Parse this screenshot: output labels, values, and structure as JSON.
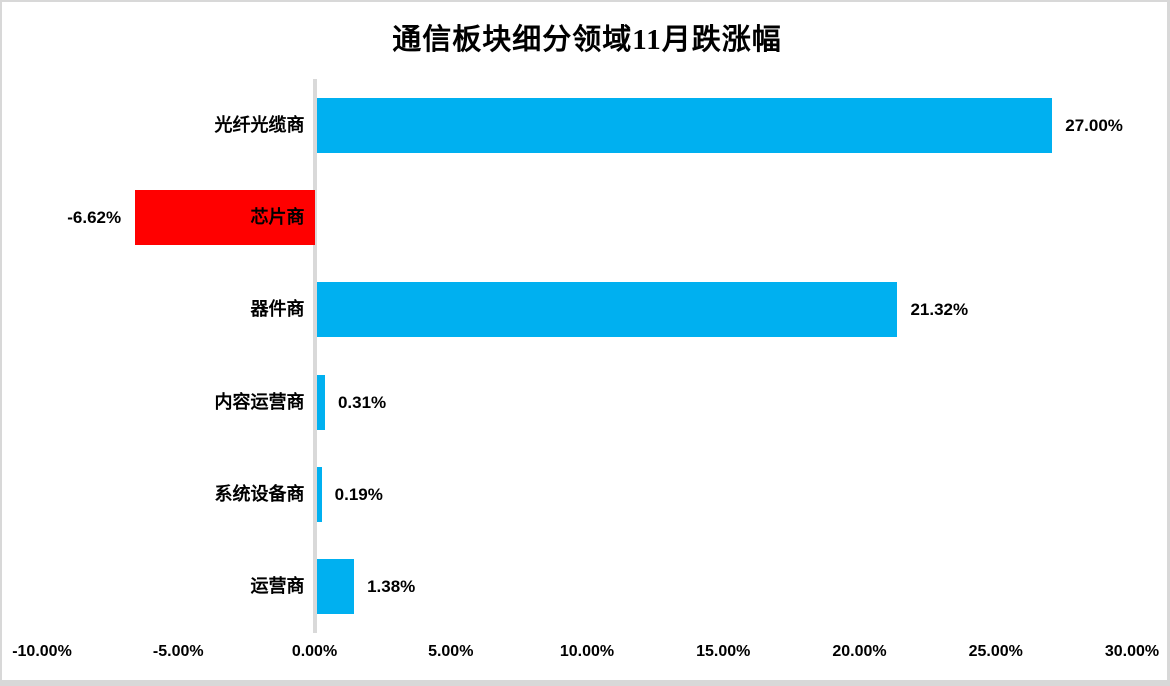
{
  "title": "通信板块细分领域11月跌涨幅",
  "chart_data": {
    "type": "bar",
    "orientation": "horizontal",
    "title": "通信板块细分领域11月跌涨幅",
    "categories": [
      "光纤光缆商",
      "芯片商",
      "器件商",
      "内容运营商",
      "系统设备商",
      "运营商"
    ],
    "values": [
      27.0,
      -6.62,
      21.32,
      0.31,
      0.19,
      1.38
    ],
    "value_labels": [
      "27.00%",
      "-6.62%",
      "21.32%",
      "0.31%",
      "0.19%",
      "1.38%"
    ],
    "xlabel": "",
    "ylabel": "",
    "xlim": [
      -10,
      30
    ],
    "x_ticks": [
      "-10.00%",
      "-5.00%",
      "0.00%",
      "5.00%",
      "10.00%",
      "15.00%",
      "20.00%",
      "25.00%",
      "30.00%"
    ],
    "grid": false,
    "legend": false,
    "colors": {
      "positive_bar": "#00B0F0",
      "negative_bar": "#FF0000",
      "axis_line": "#D9D9D9",
      "text": "#000000",
      "frame_border": "#D8D8D8"
    }
  }
}
